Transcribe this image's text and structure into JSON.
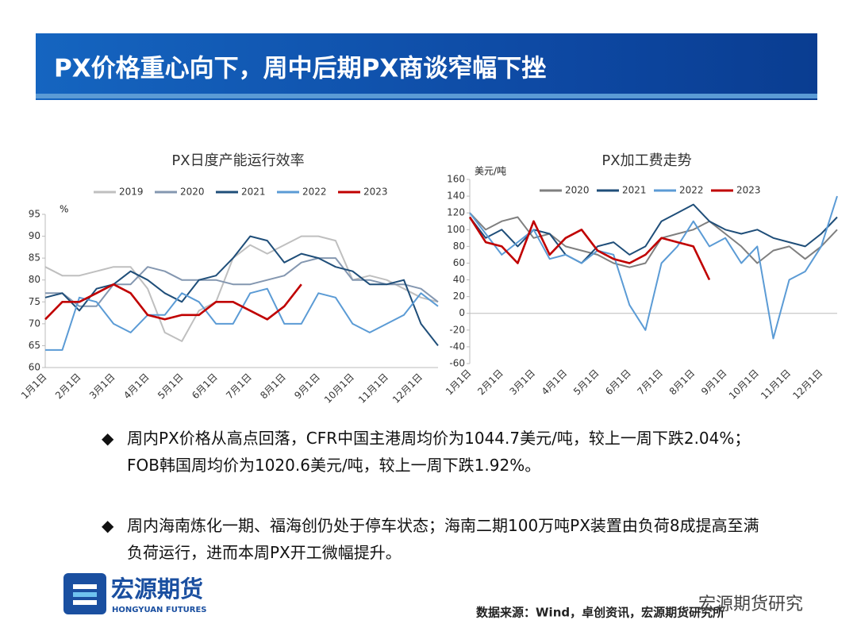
{
  "header": {
    "title": "PX价格重心向下，周中后期PX商谈窄幅下挫"
  },
  "chart_data": [
    {
      "type": "line",
      "title": "PX日度产能运行效率",
      "y_label": "%",
      "categories": [
        "1月1日",
        null,
        "2月1日",
        null,
        "3月1日",
        null,
        "4月1日",
        null,
        "5月1日",
        null,
        "6月1日",
        null,
        "7月1日",
        null,
        "8月1日",
        null,
        "9月1日",
        null,
        "10月1日",
        null,
        "11月1日",
        null,
        "12月1日",
        null
      ],
      "series": [
        {
          "name": "2019",
          "color": "#bfbfbf",
          "values": [
            83,
            81,
            81,
            82,
            83,
            83,
            78,
            68,
            66,
            73,
            75,
            85,
            88,
            86,
            88,
            90,
            90,
            89,
            80,
            81,
            80,
            78,
            76,
            75
          ]
        },
        {
          "name": "2020",
          "color": "#8497b0",
          "values": [
            77,
            77,
            74,
            74,
            79,
            79,
            83,
            82,
            80,
            80,
            80,
            79,
            79,
            80,
            81,
            84,
            85,
            85,
            80,
            80,
            79,
            79,
            78,
            75
          ]
        },
        {
          "name": "2021",
          "color": "#1f4e79",
          "values": [
            76,
            77,
            73,
            78,
            79,
            82,
            80,
            77,
            75,
            80,
            81,
            85,
            90,
            89,
            84,
            86,
            85,
            83,
            82,
            79,
            79,
            80,
            70,
            65
          ]
        },
        {
          "name": "2022",
          "color": "#5b9bd5",
          "values": [
            64,
            64,
            76,
            75,
            70,
            68,
            72,
            72,
            77,
            75,
            70,
            70,
            77,
            78,
            70,
            70,
            77,
            76,
            70,
            68,
            70,
            72,
            77,
            74
          ]
        },
        {
          "name": "2023",
          "color": "#c00000",
          "values": [
            71,
            75,
            75,
            77,
            79,
            77,
            72,
            71,
            72,
            72,
            75,
            75,
            73,
            71,
            74,
            79,
            null,
            null,
            null,
            null,
            null,
            null,
            null,
            null
          ]
        }
      ],
      "ylim": [
        60,
        95
      ],
      "yticks": [
        60,
        65,
        70,
        75,
        80,
        85,
        90,
        95
      ]
    },
    {
      "type": "line",
      "title": "PX加工费走势",
      "y_label": "美元/吨",
      "categories": [
        "1月1日",
        null,
        "2月1日",
        null,
        "3月1日",
        null,
        "4月1日",
        null,
        "5月1日",
        null,
        "6月1日",
        null,
        "7月1日",
        null,
        "8月1日",
        null,
        "9月1日",
        null,
        "10月1日",
        null,
        "11月1日",
        null,
        "12月1日",
        null
      ],
      "series": [
        {
          "name": "2020",
          "color": "#7f7f7f",
          "values": [
            120,
            100,
            110,
            115,
            90,
            95,
            80,
            75,
            70,
            60,
            55,
            60,
            90,
            95,
            100,
            110,
            95,
            80,
            60,
            75,
            80,
            65,
            80,
            100
          ]
        },
        {
          "name": "2021",
          "color": "#1f4e79",
          "values": [
            115,
            90,
            100,
            80,
            100,
            95,
            70,
            60,
            80,
            85,
            70,
            80,
            110,
            120,
            130,
            110,
            100,
            95,
            100,
            90,
            85,
            80,
            95,
            115
          ]
        },
        {
          "name": "2022",
          "color": "#5b9bd5",
          "values": [
            120,
            95,
            70,
            85,
            100,
            65,
            70,
            60,
            75,
            70,
            10,
            -20,
            60,
            80,
            110,
            80,
            90,
            60,
            80,
            -30,
            40,
            50,
            80,
            140
          ]
        },
        {
          "name": "2023",
          "color": "#c00000",
          "values": [
            115,
            85,
            80,
            60,
            110,
            70,
            90,
            100,
            75,
            65,
            60,
            70,
            90,
            85,
            80,
            40,
            null,
            null,
            null,
            null,
            null,
            null,
            null,
            null
          ]
        }
      ],
      "ylim": [
        -60,
        160
      ],
      "yticks": [
        -60,
        -40,
        -20,
        0,
        20,
        40,
        60,
        80,
        100,
        120,
        140,
        160
      ]
    }
  ],
  "bullets": [
    "周内PX价格从高点回落，CFR中国主港周均价为1044.7美元/吨，较上一周下跌2.04%；FOB韩国周均价为1020.6美元/吨，较上一周下跌1.92%。",
    "周内海南炼化一期、福海创仍处于停车状态；海南二期100万吨PX装置由负荷8成提高至满负荷运行，进而本周PX开工微幅提升。"
  ],
  "logo": {
    "name": "宏源期货",
    "sub": "HONGYUAN FUTURES"
  },
  "source": "数据来源：Wind，卓创资讯，宏源期货研究所",
  "wechat": "宏源期货研究"
}
